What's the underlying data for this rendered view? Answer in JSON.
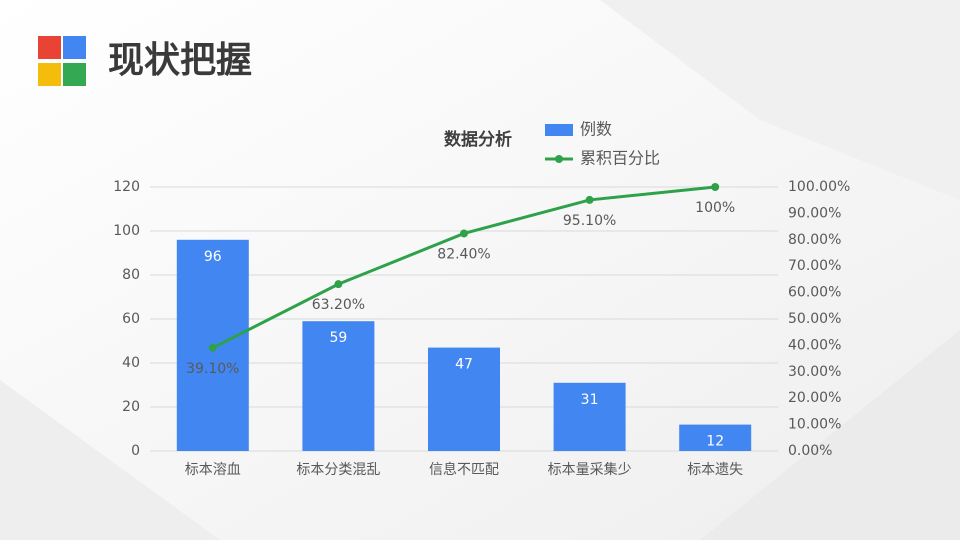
{
  "header": {
    "title": "现状把握"
  },
  "chart_data": {
    "type": "pareto",
    "title": "数据分析",
    "categories": [
      "标本溶血",
      "标本分类混乱",
      "信息不匹配",
      "标本量采集少",
      "标本遗失"
    ],
    "series": [
      {
        "name": "例数",
        "type": "bar",
        "color": "#4286f2",
        "values": [
          96,
          59,
          47,
          31,
          12
        ]
      },
      {
        "name": "累积百分比",
        "type": "line",
        "axis": "y2",
        "color": "#2ea24a",
        "values": [
          39.1,
          63.2,
          82.4,
          95.1,
          100
        ],
        "value_labels": [
          "39.10%",
          "63.20%",
          "82.40%",
          "95.10%",
          "100%"
        ]
      }
    ],
    "ylim": [
      0,
      120
    ],
    "yticks": [
      0,
      20,
      40,
      60,
      80,
      100,
      120
    ],
    "y2lim": [
      0,
      100
    ],
    "y2ticks": [
      {
        "value": 0,
        "label": "0.00%"
      },
      {
        "value": 10,
        "label": "10.00%"
      },
      {
        "value": 20,
        "label": "20.00%"
      },
      {
        "value": 30,
        "label": "30.00%"
      },
      {
        "value": 40,
        "label": "40.00%"
      },
      {
        "value": 50,
        "label": "50.00%"
      },
      {
        "value": 60,
        "label": "60.00%"
      },
      {
        "value": 70,
        "label": "70.00%"
      },
      {
        "value": 80,
        "label": "80.00%"
      },
      {
        "value": 90,
        "label": "90.00%"
      },
      {
        "value": 100,
        "label": "100.00%"
      }
    ],
    "grid": true
  }
}
